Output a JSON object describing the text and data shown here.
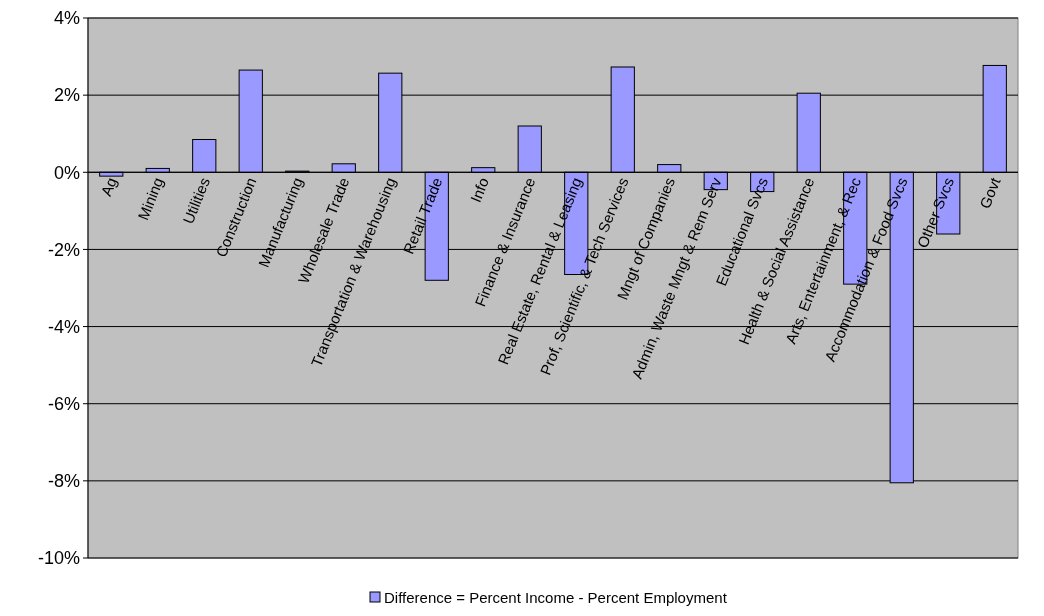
{
  "chart_data": {
    "type": "bar",
    "categories": [
      "Ag",
      "Mining",
      "Utilities",
      "Construction",
      "Manufacturing",
      "Wholesale Trade",
      "Transportation & Warehousing",
      "Retail Trade",
      "Info",
      "Finance & Insurance",
      "Real Estate, Rental & Leasing",
      "Prof, Scientific, & Tech Services",
      "Mngt of Companies",
      "Admin, Waste Mngt & Rem Serv",
      "Educational Svcs",
      "Health & Social Assistance",
      "Arts, Entertainment, & Rec",
      "Accommodation & Food Svcs",
      "Other Svcs",
      "Govt"
    ],
    "series": [
      {
        "name": "Difference = Percent Income - Percent Employment",
        "color": "#9999ff",
        "values": [
          -0.1,
          0.1,
          0.85,
          2.65,
          0.03,
          0.22,
          2.57,
          -2.8,
          0.12,
          1.2,
          -2.65,
          2.73,
          0.2,
          -0.45,
          -0.5,
          2.05,
          -2.9,
          -8.05,
          -1.6,
          2.77
        ]
      }
    ],
    "ylim": [
      -10,
      4
    ],
    "yticks": [
      {
        "value": -10,
        "label": "-10%"
      },
      {
        "value": -8,
        "label": "-8%"
      },
      {
        "value": -6,
        "label": "-6%"
      },
      {
        "value": -4,
        "label": "-4%"
      },
      {
        "value": -2,
        "label": "-2%"
      },
      {
        "value": 0,
        "label": "0%"
      },
      {
        "value": 2,
        "label": "2%"
      },
      {
        "value": 4,
        "label": "4%"
      }
    ],
    "grid": "y",
    "legend": "bottom"
  }
}
